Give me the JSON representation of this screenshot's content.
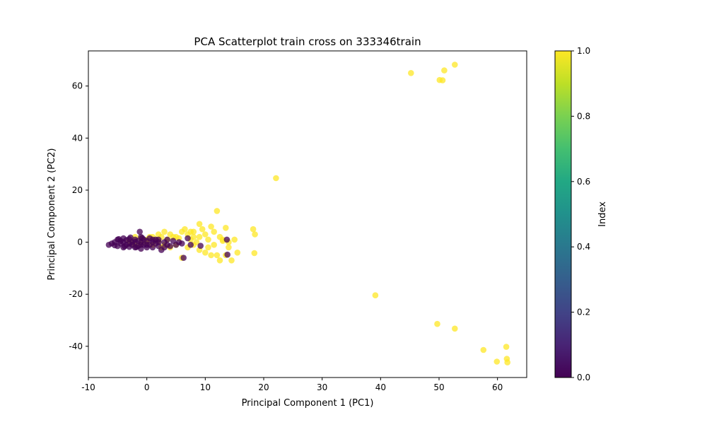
{
  "chart_data": {
    "type": "scatter",
    "title": "PCA Scatterplot train cross on 333346train",
    "xlabel": "Principal Component 1 (PC1)",
    "ylabel": "Principal Component 2 (PC2)",
    "xlim": [
      -10,
      65
    ],
    "ylim": [
      -52,
      73.5
    ],
    "x_ticks": [
      -10,
      0,
      10,
      20,
      30,
      40,
      50,
      60
    ],
    "y_ticks": [
      -40,
      -20,
      0,
      20,
      40,
      60
    ],
    "grid": false,
    "colormap": "viridis",
    "point_alpha": 0.75,
    "colorbar": {
      "label": "Index",
      "range": [
        0.0,
        1.0
      ],
      "ticks": [
        "0.0",
        "0.2",
        "0.4",
        "0.6",
        "0.8",
        "1.0"
      ]
    },
    "series": [
      {
        "color_value": 1.0,
        "color": "#fde725",
        "points": [
          [
            -3,
            0.5
          ],
          [
            -2,
            -1
          ],
          [
            -1,
            1.5
          ],
          [
            0,
            0
          ],
          [
            0.5,
            2
          ],
          [
            1,
            -1
          ],
          [
            1.5,
            1
          ],
          [
            2,
            3
          ],
          [
            2.5,
            2
          ],
          [
            3,
            4
          ],
          [
            3.5,
            1
          ],
          [
            4,
            3
          ],
          [
            4.5,
            2
          ],
          [
            5,
            -1
          ],
          [
            5.5,
            1.5
          ],
          [
            6,
            4
          ],
          [
            6.5,
            5
          ],
          [
            7,
            3
          ],
          [
            7.5,
            4
          ],
          [
            8,
            2
          ],
          [
            8.5,
            0
          ],
          [
            9,
            7
          ],
          [
            9.5,
            5
          ],
          [
            10,
            3
          ],
          [
            10.5,
            1
          ],
          [
            11,
            6
          ],
          [
            11.5,
            4
          ],
          [
            12,
            12
          ],
          [
            12.5,
            2
          ],
          [
            13,
            1
          ],
          [
            13.5,
            5.5
          ],
          [
            14,
            0
          ],
          [
            14.5,
            -7
          ],
          [
            15,
            1
          ],
          [
            15.5,
            -4
          ],
          [
            18.2,
            5
          ],
          [
            18.5,
            3
          ],
          [
            18.4,
            -4.2
          ],
          [
            22.1,
            24.6
          ],
          [
            6,
            -6
          ],
          [
            7,
            -2
          ],
          [
            8,
            -1
          ],
          [
            9,
            -3
          ],
          [
            10,
            -4
          ],
          [
            11,
            -5
          ],
          [
            11.5,
            -1
          ],
          [
            12,
            -5
          ],
          [
            12.5,
            -7
          ],
          [
            13,
            0.5
          ],
          [
            13.5,
            -5
          ],
          [
            14,
            -2
          ],
          [
            10.5,
            -2
          ],
          [
            9,
            2
          ],
          [
            8,
            4
          ],
          [
            7.5,
            1
          ],
          [
            4,
            -2
          ],
          [
            3,
            -1
          ],
          [
            2,
            0.5
          ],
          [
            1,
            2
          ],
          [
            0,
            1
          ],
          [
            -1,
            -0.5
          ],
          [
            -2,
            2
          ],
          [
            2.5,
            -2
          ],
          [
            5,
            2
          ],
          [
            45.2,
            65
          ],
          [
            50.1,
            62.3
          ],
          [
            50.6,
            62.2
          ],
          [
            50.9,
            66
          ],
          [
            52.7,
            68.2
          ],
          [
            39.1,
            -20.4
          ],
          [
            49.7,
            -31.4
          ],
          [
            52.7,
            -33.2
          ],
          [
            57.6,
            -41.4
          ],
          [
            59.9,
            -45.9
          ],
          [
            61.5,
            -40.2
          ],
          [
            61.6,
            -44.8
          ],
          [
            61.7,
            -46.2
          ]
        ]
      },
      {
        "color_value": 0.0,
        "color": "#440154",
        "points": [
          [
            -6.5,
            -1
          ],
          [
            -6,
            -0.5
          ],
          [
            -5.5,
            0
          ],
          [
            -5,
            -1.5
          ],
          [
            -5,
            1
          ],
          [
            -4.5,
            -0.5
          ],
          [
            -4.5,
            0.5
          ],
          [
            -4,
            -2
          ],
          [
            -4,
            1.5
          ],
          [
            -3.5,
            -1
          ],
          [
            -3.5,
            0.8
          ],
          [
            -3,
            -1.8
          ],
          [
            -3,
            1.2
          ],
          [
            -2.5,
            0
          ],
          [
            -2.5,
            -1
          ],
          [
            -2,
            1
          ],
          [
            -2,
            -2
          ],
          [
            -1.5,
            0.5
          ],
          [
            -1.5,
            -1.5
          ],
          [
            -1,
            0
          ],
          [
            -1,
            2
          ],
          [
            -1,
            -2.5
          ],
          [
            -0.5,
            1
          ],
          [
            -0.5,
            -1
          ],
          [
            0,
            0.5
          ],
          [
            0,
            -2
          ],
          [
            0.5,
            1.5
          ],
          [
            0.5,
            -1
          ],
          [
            1,
            0
          ],
          [
            1,
            -2
          ],
          [
            1.5,
            1
          ],
          [
            1.5,
            -0.5
          ],
          [
            2,
            0
          ],
          [
            2,
            -1.5
          ],
          [
            2.5,
            -3
          ],
          [
            3,
            -2
          ],
          [
            3,
            0
          ],
          [
            3.5,
            1
          ],
          [
            3.5,
            -1
          ],
          [
            4,
            -1.5
          ],
          [
            4.5,
            0.5
          ],
          [
            5,
            -1
          ],
          [
            5.5,
            0
          ],
          [
            6,
            -0.5
          ],
          [
            6.3,
            -6
          ],
          [
            7,
            1.5
          ],
          [
            7.5,
            -1
          ],
          [
            9.2,
            -1.4
          ],
          [
            13.8,
            -4.8
          ],
          [
            13.7,
            1
          ],
          [
            -1.2,
            4
          ],
          [
            -4,
            0
          ],
          [
            -3,
            -0.5
          ],
          [
            -2,
            0.2
          ],
          [
            -1,
            -1
          ],
          [
            0,
            -1
          ],
          [
            1,
            1
          ],
          [
            2,
            1
          ],
          [
            -5.5,
            -1.2
          ],
          [
            -4.8,
            1.2
          ],
          [
            -3.8,
            -1.6
          ],
          [
            -2.8,
            1.8
          ],
          [
            -1.8,
            -1.9
          ],
          [
            -0.8,
            1.6
          ]
        ]
      }
    ]
  }
}
